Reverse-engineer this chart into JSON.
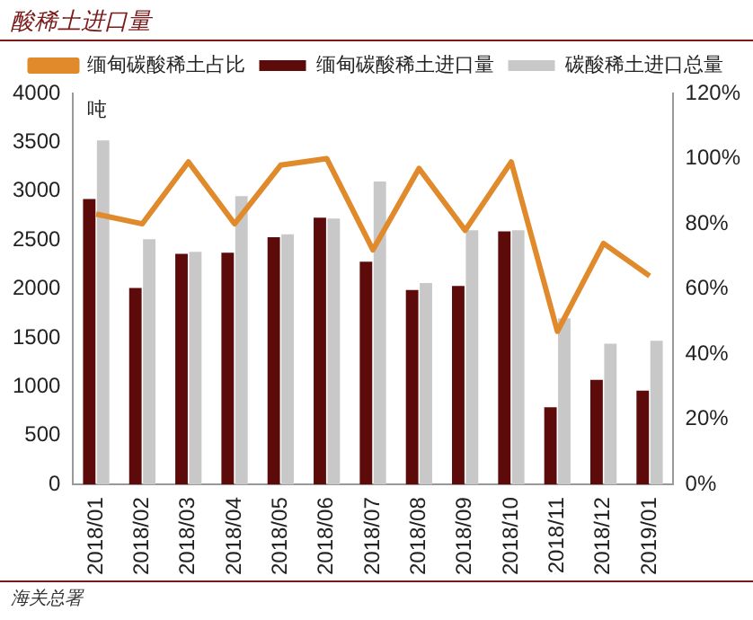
{
  "chart_data": {
    "type": "bar",
    "title": "酸稀土进口量",
    "ylabel": "吨",
    "categories": [
      "2018/01",
      "2018/02",
      "2018/03",
      "2018/04",
      "2018/05",
      "2018/06",
      "2018/07",
      "2018/08",
      "2018/09",
      "2018/10",
      "2018/11",
      "2018/12",
      "2019/01"
    ],
    "series": [
      {
        "name": "缅甸碳酸稀土进口量",
        "color": "#5c0a0a",
        "values": [
          2920,
          2010,
          2360,
          2370,
          2530,
          2730,
          2280,
          1990,
          2030,
          2590,
          790,
          1070,
          960
        ]
      },
      {
        "name": "碳酸稀土进口总量",
        "color": "#c8c8c8",
        "values": [
          3520,
          2510,
          2380,
          2950,
          2560,
          2720,
          3100,
          2060,
          2600,
          2600,
          1700,
          1440,
          1470
        ]
      },
      {
        "name": "缅甸碳酸稀土占比",
        "type": "line",
        "axis": "y2",
        "color": "#e08a2c",
        "marker": "none",
        "values": [
          83,
          80,
          99,
          80,
          98,
          100,
          72,
          97,
          78,
          99,
          47,
          74,
          64
        ]
      }
    ],
    "ylim": [
      0,
      4000
    ],
    "yticks": [
      0,
      500,
      1000,
      1500,
      2000,
      2500,
      3000,
      3500,
      4000
    ],
    "y2lim": [
      0,
      120
    ],
    "y2ticks": [
      {
        "value": 0,
        "label": "0%"
      },
      {
        "value": 20,
        "label": "20%"
      },
      {
        "value": 40,
        "label": "40%"
      },
      {
        "value": 60,
        "label": "60%"
      },
      {
        "value": 80,
        "label": "80%"
      },
      {
        "value": 100,
        "label": "100%"
      },
      {
        "value": 120,
        "label": "120%"
      }
    ],
    "grid": false,
    "legend": "top",
    "annotations": [
      "海关总署"
    ]
  }
}
